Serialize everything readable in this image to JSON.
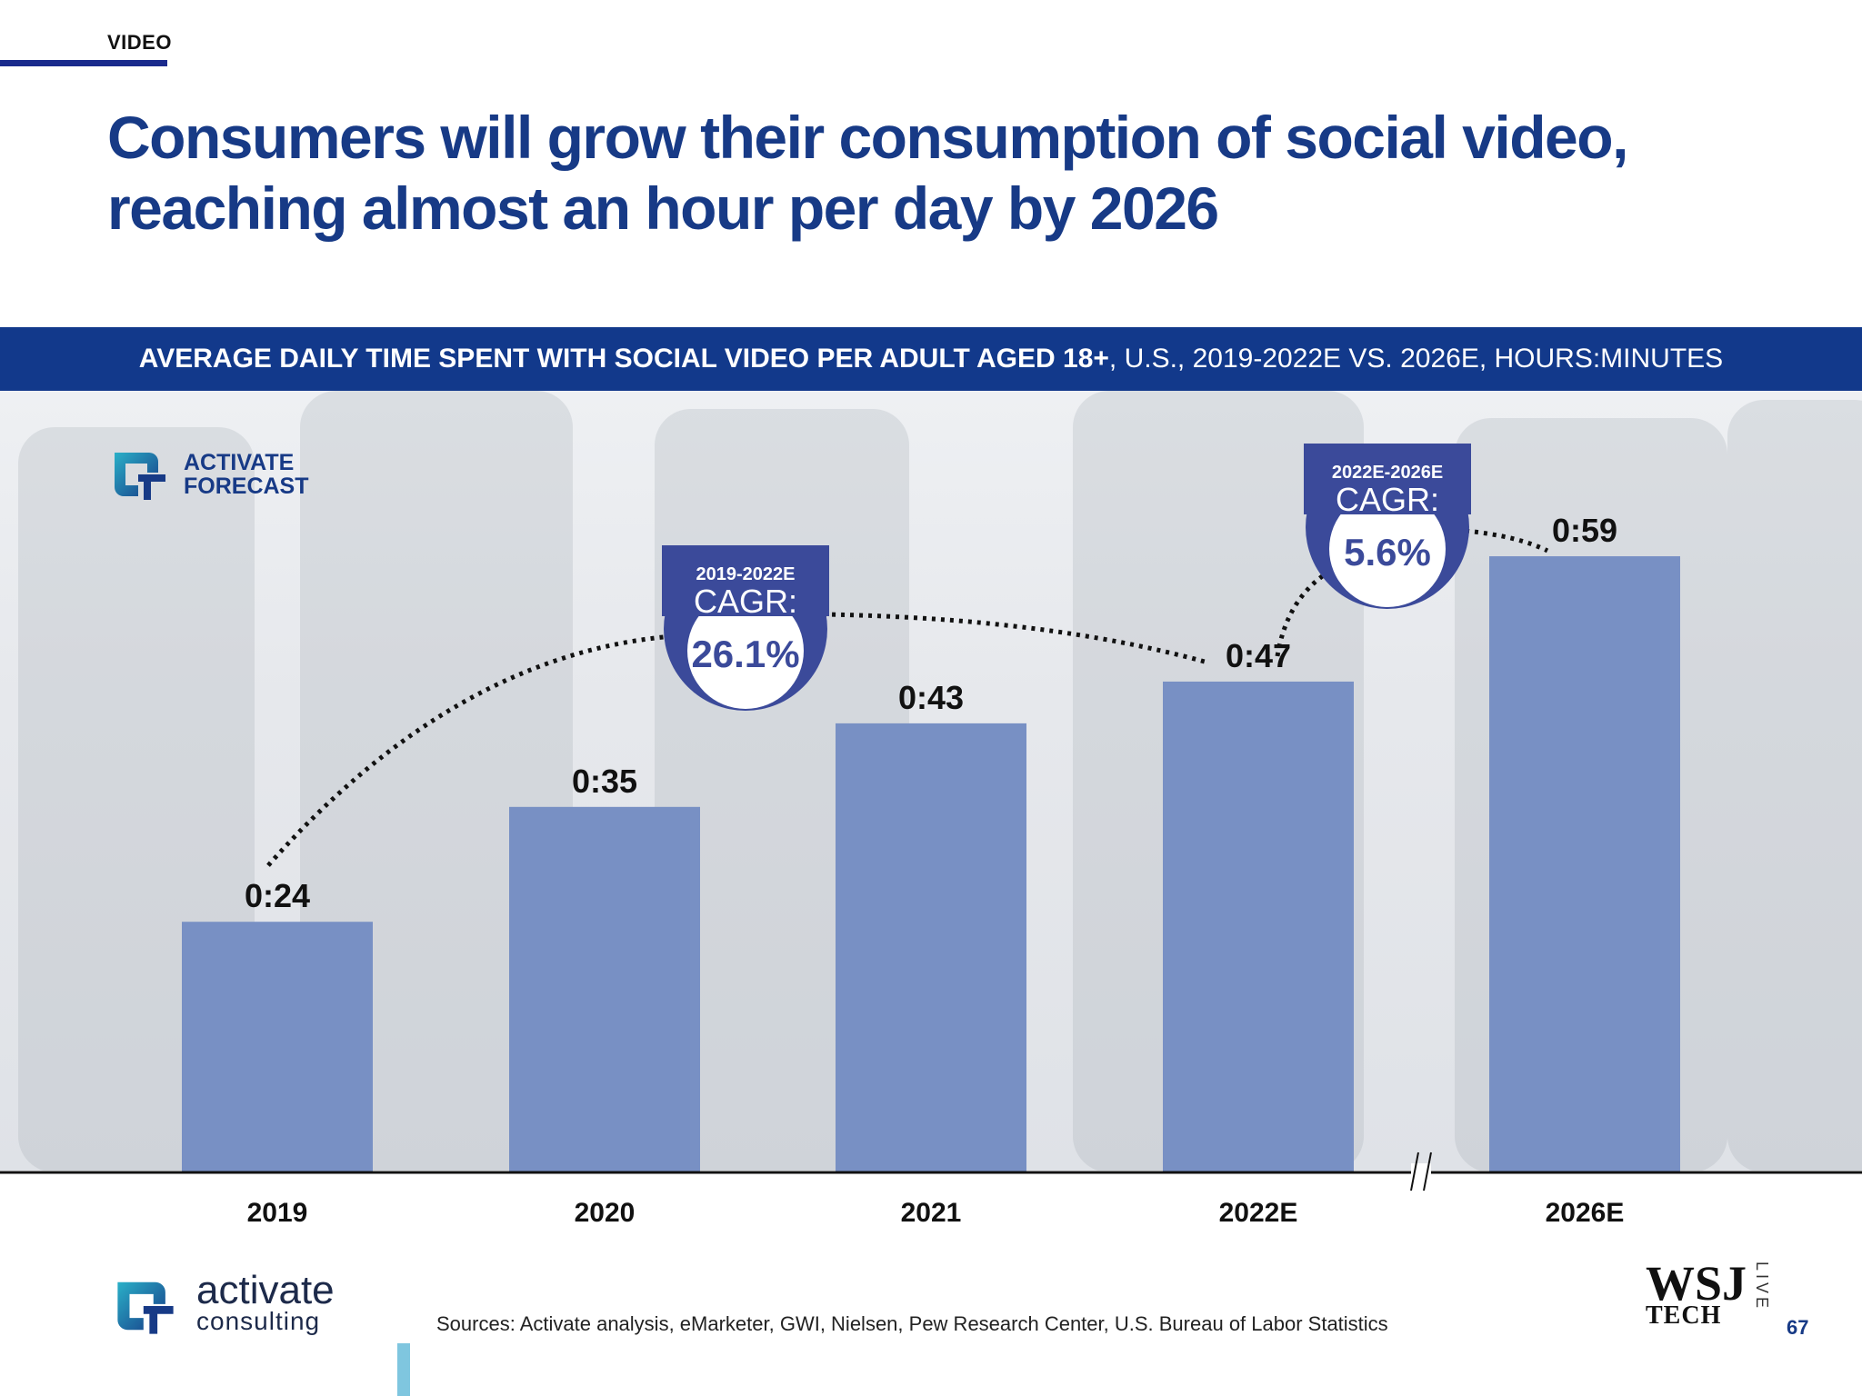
{
  "section": "VIDEO",
  "title": "Consumers will grow their consumption of social video, reaching almost an hour per day by 2026",
  "banner": {
    "bold": "AVERAGE DAILY TIME SPENT WITH SOCIAL VIDEO PER ADULT AGED 18+",
    "rest": ", U.S., 2019-2022E VS. 2026E, HOURS:MINUTES"
  },
  "forecast_badge": {
    "line1": "ACTIVATE",
    "line2": "FORECAST"
  },
  "chart_data": {
    "type": "bar",
    "title": "AVERAGE DAILY TIME SPENT WITH SOCIAL VIDEO PER ADULT AGED 18+, U.S., 2019-2022E VS. 2026E, HOURS:MINUTES",
    "categories": [
      "2019",
      "2020",
      "2021",
      "2022E",
      "2026E"
    ],
    "values": [
      24,
      35,
      43,
      47,
      59
    ],
    "data_labels": [
      "0:24",
      "0:35",
      "0:43",
      "0:47",
      "0:59"
    ],
    "ylim": [
      0,
      65
    ],
    "bar_color": "#7890c4",
    "grid": false,
    "axis_break_between": [
      "2022E",
      "2026E"
    ],
    "annotations": [
      {
        "period": "2019-2022E",
        "label": "CAGR:",
        "value": "26.1%",
        "from": "2019",
        "to": "2022E"
      },
      {
        "period": "2022E-2026E",
        "label": "CAGR:",
        "value": "5.6%",
        "from": "2022E",
        "to": "2026E"
      }
    ]
  },
  "sources": "Sources: Activate analysis, eMarketer, GWI, Nielsen, Pew Research Center, U.S. Bureau of Labor Statistics",
  "brand": {
    "line1": "activate",
    "line2": "consulting"
  },
  "wsj": {
    "logo": "WSJ",
    "tech": "TECH",
    "live": "LIVE"
  },
  "page_number": "67",
  "colors": {
    "navy": "#173a86",
    "banner": "#12398b",
    "bar": "#7890c4",
    "badge_ring": "#3b4a9a",
    "teal": "#2ab0c8"
  }
}
